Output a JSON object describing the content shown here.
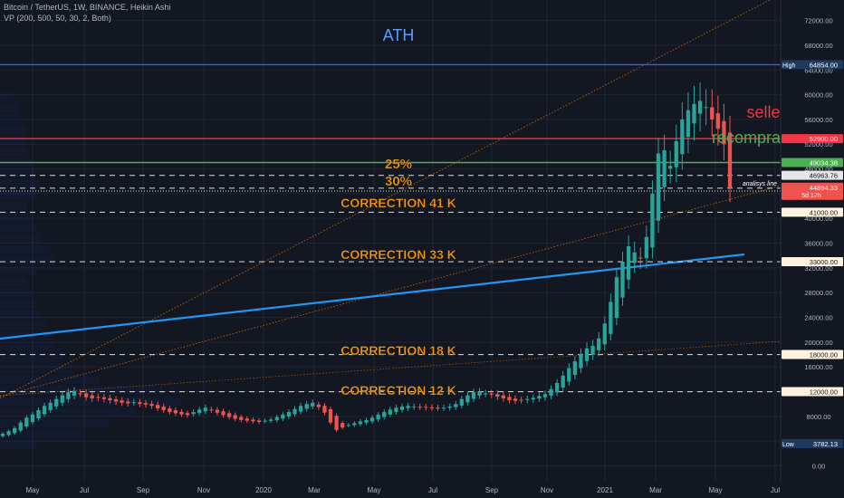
{
  "header": {
    "symbol_line": "Bitcoin / TetherUS, 1W, BINANCE, Heikin Ashi",
    "indicator_line": "VP (200, 500, 50, 30, 2, Both)"
  },
  "colors": {
    "background": "#131722",
    "grid": "#1f2433",
    "up_candle": "#26a69a",
    "down_candle": "#ef5350",
    "ath_line": "#2962ff",
    "ath_text": "#5b9cf6",
    "sell_line": "#f23645",
    "rebuy_line": "#4caf50",
    "correction_text": "#ff9800",
    "dashed_level": "#e6e6e6",
    "trend_line": "#2196f3",
    "dotted_trend": "#f57c00"
  },
  "annotations": {
    "ath": "ATH",
    "selled": "selled",
    "recomprar": "recomprar",
    "pct25": "25%",
    "pct30": "30%",
    "corr41": "CORRECTION  41 K",
    "corr33": "CORRECTION  33 K",
    "corr18": "CORRECTION  18 K",
    "corr12": "CORRECTION  12 K",
    "analysis": "analisys line"
  },
  "price_labels": {
    "high_prefix": "High",
    "high_value": "64854.00",
    "low_prefix": "Low",
    "low_value": "3782.13",
    "sell": "52900.00",
    "rebuy": "49034.38",
    "level_25": "46963.76",
    "current": "44894.33",
    "current_sub": "5d 17h",
    "level_41": "41000.00",
    "level_33": "33000.00",
    "level_18": "18000.00",
    "level_12": "12000.00"
  },
  "chart_data": {
    "type": "candlestick",
    "title": "Bitcoin / TetherUS, 1W, BINANCE, Heikin Ashi",
    "y_ticks": [
      0,
      4000,
      8000,
      12000,
      16000,
      20000,
      24000,
      28000,
      32000,
      36000,
      40000,
      44000,
      48000,
      52000,
      56000,
      60000,
      64000,
      68000,
      72000
    ],
    "y_tick_labels": [
      "0.00",
      "4000.00",
      "8000.00",
      "12000.00",
      "16000.00",
      "20000.00",
      "24000.00",
      "28000.00",
      "32000.00",
      "36000.00",
      "40000.00",
      "44000.00",
      "48000.00",
      "52000.00",
      "56000.00",
      "60000.00",
      "64000.00",
      "68000.00",
      "72000.00"
    ],
    "x_labels": [
      "May",
      "Jul",
      "Sep",
      "Nov",
      "2020",
      "Mar",
      "May",
      "Jul",
      "Sep",
      "Nov",
      "2021",
      "Mar",
      "May",
      "Jul"
    ],
    "ylim": [
      -2000,
      74000
    ],
    "horizontal_levels": {
      "ath": 64854,
      "sell": 52900,
      "rebuy": 49034.38,
      "level_25": 46963.76,
      "current": 44894.33,
      "correction_41k": 41000,
      "correction_33k": 33000,
      "correction_18k": 18000,
      "correction_12k": 12000
    },
    "weekly_close": [
      5200,
      5600,
      6100,
      7000,
      7800,
      8300,
      9000,
      9700,
      10200,
      10800,
      11400,
      11900,
      12100,
      11700,
      11100,
      10900,
      11000,
      10800,
      10600,
      10400,
      10200,
      10100,
      10300,
      10000,
      9900,
      9700,
      9300,
      9000,
      8700,
      8500,
      8300,
      8200,
      8700,
      9100,
      9400,
      9000,
      8600,
      8200,
      7900,
      7600,
      7400,
      7300,
      7200,
      7100,
      7300,
      7500,
      7900,
      8300,
      8700,
      9200,
      9700,
      10000,
      10200,
      9500,
      8600,
      7000,
      5800,
      6200,
      6600,
      6900,
      7200,
      7400,
      7800,
      8300,
      8700,
      9100,
      9400,
      9600,
      9700,
      9600,
      9500,
      9400,
      9350,
      9300,
      9400,
      9600,
      10000,
      10800,
      11400,
      11900,
      12000,
      11700,
      11500,
      11200,
      10900,
      10600,
      10500,
      10600,
      10800,
      11000,
      11300,
      11600,
      12400,
      13400,
      14600,
      15800,
      16900,
      18100,
      19000,
      19400,
      20600,
      23000,
      26500,
      30500,
      33000,
      35500,
      34500,
      33500,
      37000,
      44000,
      50500,
      51000,
      48500,
      52500,
      56000,
      57500,
      58500,
      59000,
      58000,
      56000,
      54500,
      52000,
      44894
    ]
  }
}
